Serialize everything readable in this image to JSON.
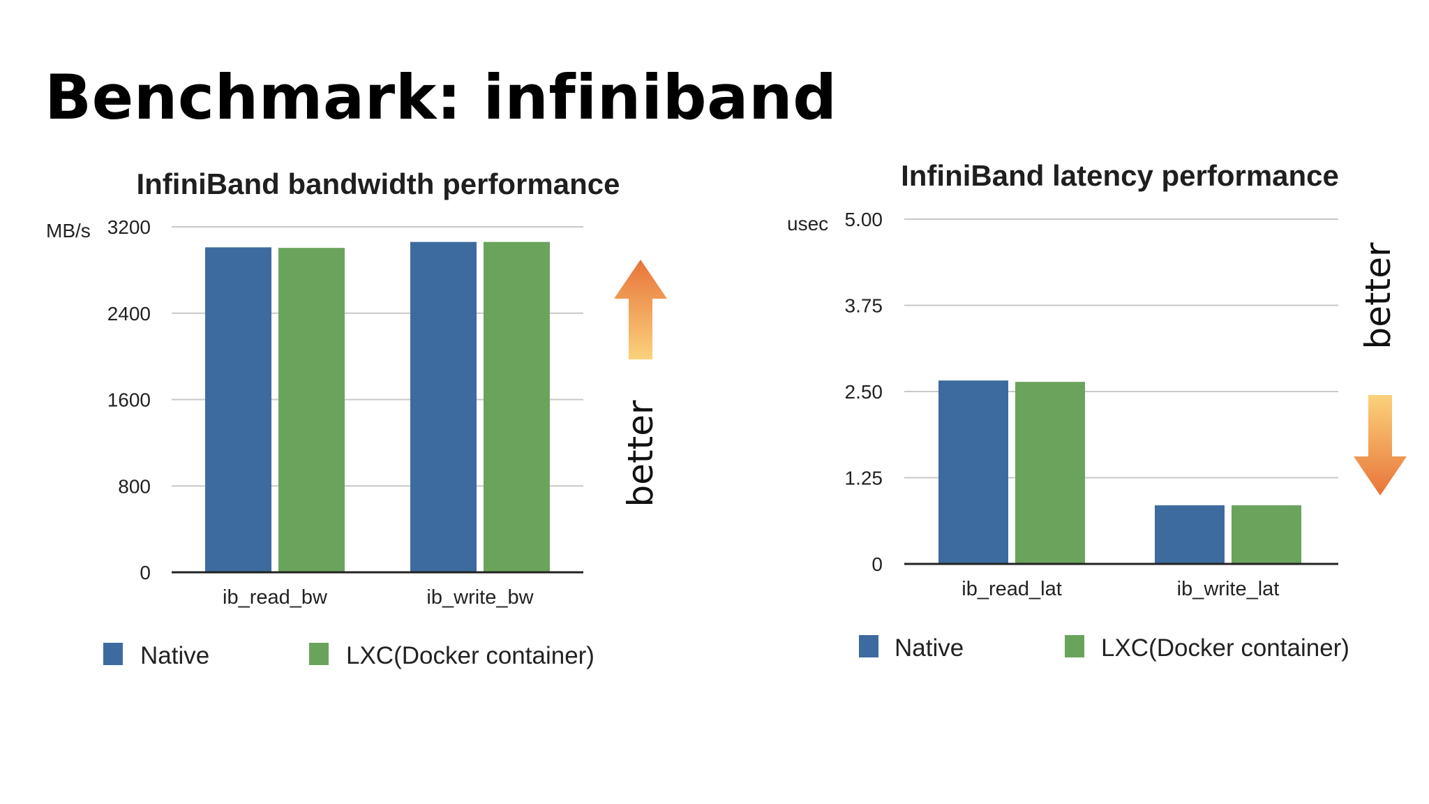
{
  "slide": {
    "title": "Benchmark: infiniband"
  },
  "colors": {
    "native": "#3d6b9f",
    "lxc": "#6aa45c",
    "grid": "#c8c8c8",
    "axis": "#222222",
    "arrow_dark": "#e8743a",
    "arrow_light": "#fbd27c"
  },
  "chart_data": [
    {
      "type": "bar",
      "title": "InfiniBand bandwidth performance",
      "ylabel": "MB/s",
      "xlabel": "",
      "ylim": [
        0,
        3200
      ],
      "yticks": [
        "0",
        "800",
        "1600",
        "2400",
        "3200"
      ],
      "ytick_values": [
        0,
        800,
        1600,
        2400,
        3200
      ],
      "categories": [
        "ib_read_bw",
        "ib_write_bw"
      ],
      "series": [
        {
          "name": "Native",
          "values": [
            3010,
            3060
          ]
        },
        {
          "name": "LXC(Docker container)",
          "values": [
            3005,
            3060
          ]
        }
      ],
      "grid": true,
      "legend": "bottom",
      "annotation": {
        "text": "better",
        "arrow": "up"
      }
    },
    {
      "type": "bar",
      "title": "InfiniBand latency performance",
      "ylabel": "usec",
      "xlabel": "",
      "ylim": [
        0,
        5
      ],
      "yticks": [
        "0",
        "1.25",
        "2.50",
        "3.75",
        "5.00"
      ],
      "ytick_values": [
        0,
        1.25,
        2.5,
        3.75,
        5.0
      ],
      "categories": [
        "ib_read_lat",
        "ib_write_lat"
      ],
      "series": [
        {
          "name": "Native",
          "values": [
            2.66,
            0.85
          ]
        },
        {
          "name": "LXC(Docker container)",
          "values": [
            2.64,
            0.85
          ]
        }
      ],
      "grid": true,
      "legend": "bottom",
      "annotation": {
        "text": "better",
        "arrow": "down"
      }
    }
  ]
}
